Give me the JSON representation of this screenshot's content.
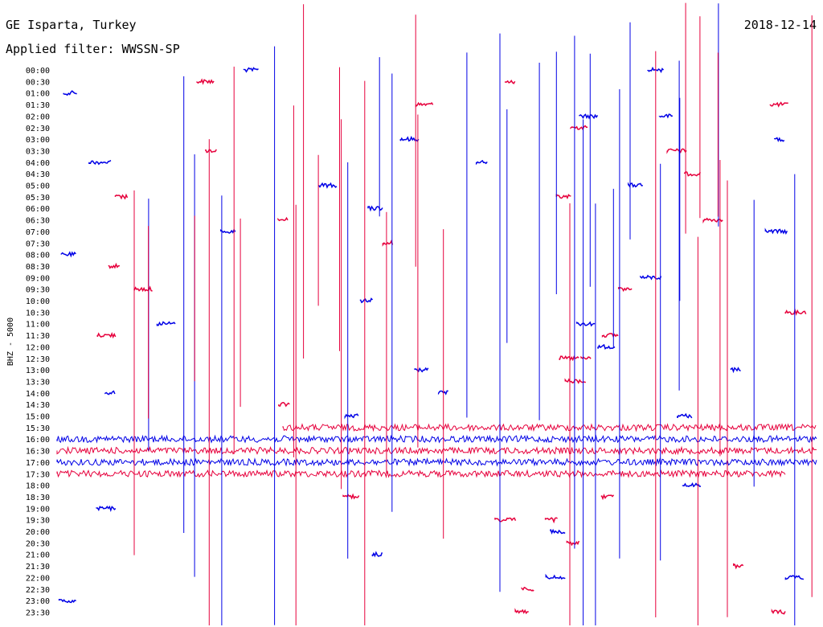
{
  "header": {
    "station": "GE Isparta, Turkey",
    "filter": "Applied filter: WWSSN-SP",
    "date": "2018-12-14"
  },
  "axis": {
    "ylabel": "BHZ - 5000"
  },
  "colors": {
    "trace_a": "#0000e6",
    "trace_b": "#e6003c",
    "background": "#ffffff",
    "text": "#000000"
  },
  "chart_data": {
    "type": "line",
    "title": "",
    "ylabel": "BHZ - 5000",
    "line_interval_minutes": 30,
    "row_count": 48,
    "tick_labels": [
      "00:00",
      "00:30",
      "01:00",
      "01:30",
      "02:00",
      "02:30",
      "03:00",
      "03:30",
      "04:00",
      "04:30",
      "05:00",
      "05:30",
      "06:00",
      "06:30",
      "07:00",
      "07:30",
      "08:00",
      "08:30",
      "09:00",
      "09:30",
      "10:00",
      "10:30",
      "11:00",
      "11:30",
      "12:00",
      "12:30",
      "13:00",
      "13:30",
      "14:00",
      "14:30",
      "15:00",
      "15:30",
      "16:00",
      "16:30",
      "17:00",
      "17:30",
      "18:00",
      "18:30",
      "19:00",
      "19:30",
      "20:00",
      "20:30",
      "21:00",
      "21:30",
      "22:00",
      "22:30",
      "23:00",
      "23:30"
    ],
    "series": [
      {
        "color_key": "trace_a",
        "rows": "even"
      },
      {
        "color_key": "trace_b",
        "rows": "odd"
      }
    ],
    "continuous_trace_rows": [
      "15:30",
      "16:00",
      "16:30",
      "17:00",
      "17:30"
    ],
    "grid": false,
    "legend": "none"
  }
}
